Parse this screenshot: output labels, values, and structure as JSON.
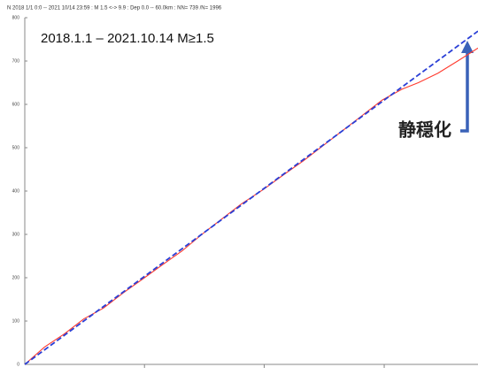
{
  "chart_data": {
    "type": "line",
    "header": "N   2018 1/1 0:0 -- 2021 10/14 23:59 : M 1.5 <-> 9.9 : Dep 0.0 -- 60.0km : NN= 739 /N= 1996",
    "title": "2018.1.1 – 2021.10.14  M≥1.5",
    "annotation": "静穏化",
    "xlim": [
      0,
      1382
    ],
    "xticks": [
      365,
      730,
      1096
    ],
    "ylim": [
      0,
      800
    ],
    "yticks": [
      0,
      100,
      200,
      300,
      400,
      500,
      600,
      700,
      800
    ],
    "series": [
      {
        "color": "#ff3b2f",
        "dash": false,
        "x": [
          0,
          60,
          120,
          180,
          240,
          300,
          365,
          420,
          480,
          540,
          600,
          660,
          730,
          790,
          850,
          910,
          970,
          1030,
          1090,
          1150,
          1200,
          1260,
          1320,
          1382
        ],
        "values": [
          0,
          40,
          70,
          105,
          130,
          165,
          200,
          230,
          262,
          300,
          335,
          370,
          405,
          438,
          470,
          505,
          540,
          575,
          610,
          635,
          650,
          672,
          700,
          730
        ]
      },
      {
        "color": "#2a3fd6",
        "dash": true,
        "x": [
          0,
          1382
        ],
        "values": [
          0,
          769
        ]
      }
    ]
  }
}
